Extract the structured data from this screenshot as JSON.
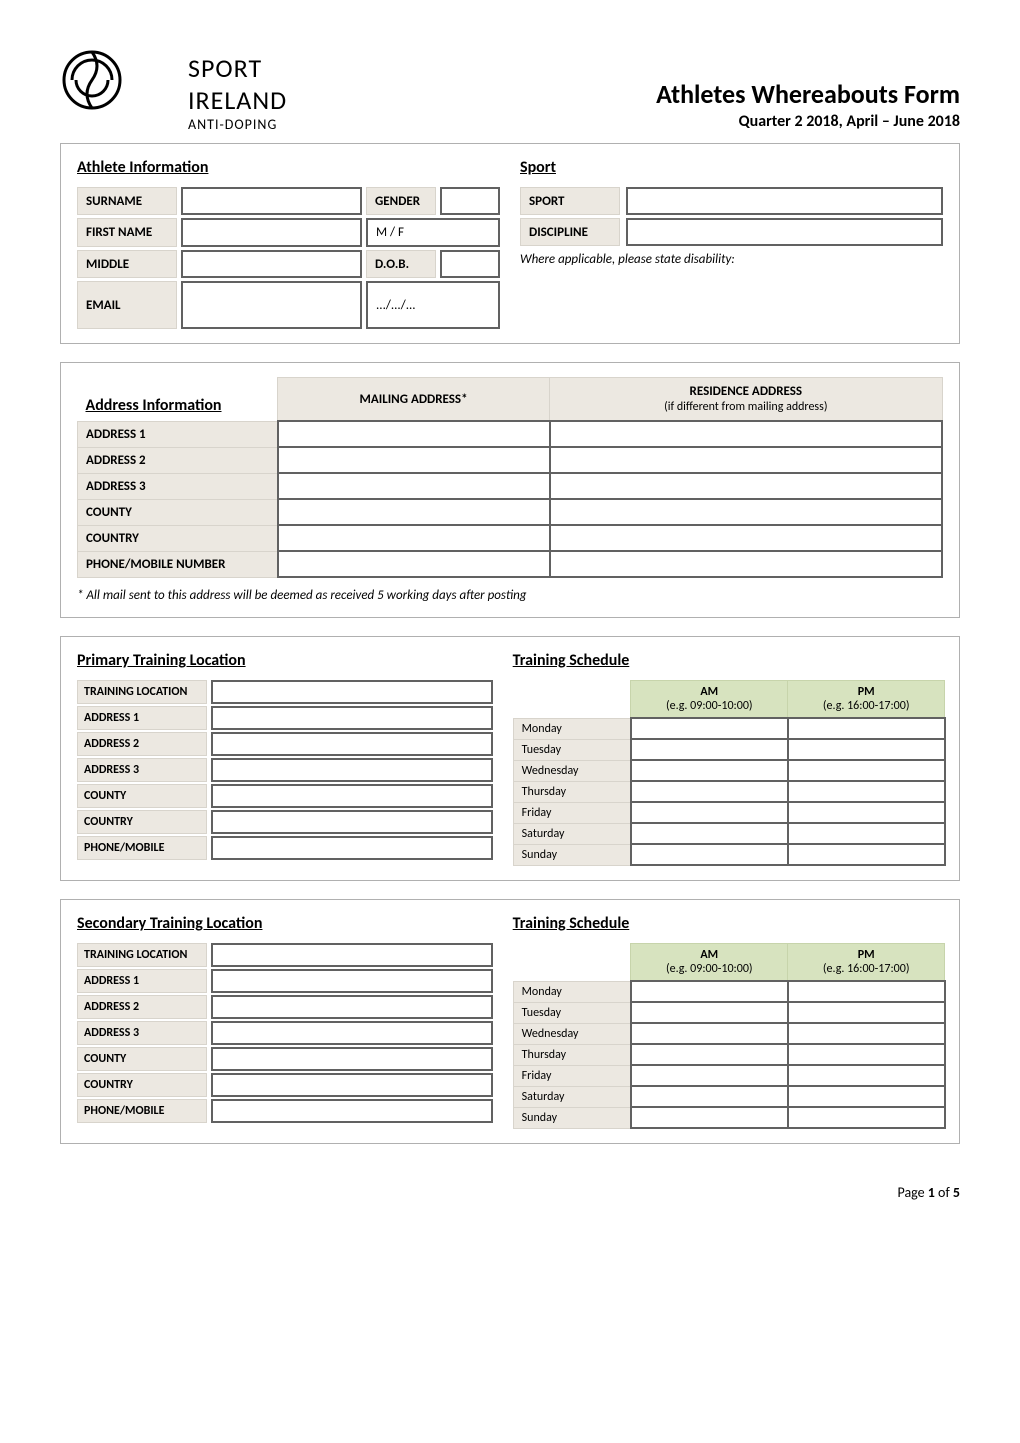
{
  "logo": {
    "line1": "SPORT",
    "line2": "IRELAND",
    "line3": "ANTI-DOPING"
  },
  "title": "Athletes Whereabouts Form",
  "subtitle": "Quarter 2 2018, April – June 2018",
  "athlete_section": {
    "heading": "Athlete Information",
    "rows": [
      {
        "label": "SURNAME",
        "value": "",
        "label2": "GENDER",
        "value2": ""
      },
      {
        "label": "FIRST NAME",
        "value": "",
        "label2": "",
        "value2": "M / F"
      },
      {
        "label": "MIDDLE",
        "value": "",
        "label2": "D.O.B.",
        "value2": ""
      },
      {
        "label": "EMAIL",
        "value": "",
        "label2": "",
        "value2": ".../.../..."
      }
    ]
  },
  "sport_section": {
    "heading": "Sport",
    "rows": [
      {
        "label": "SPORT",
        "value": ""
      },
      {
        "label": "DISCIPLINE",
        "value": ""
      }
    ],
    "note": "Where applicable, please state disability:"
  },
  "address_section": {
    "heading": "Address Information",
    "columns": [
      {
        "label": "MAILING ADDRESS",
        "suffix": "*"
      },
      {
        "label": "RESIDENCE ADDRESS",
        "sub": "(if different from mailing address)"
      }
    ],
    "rows": [
      "ADDRESS 1",
      "ADDRESS 2",
      "ADDRESS 3",
      "COUNTY",
      "COUNTRY",
      "PHONE/MOBILE NUMBER"
    ],
    "footnote": "* All mail sent to this address will be deemed as received 5 working days after posting"
  },
  "training_loc_fields": [
    "TRAINING LOCATION",
    "ADDRESS 1",
    "ADDRESS 2",
    "ADDRESS 3",
    "COUNTY",
    "COUNTRY",
    "PHONE/MOBILE"
  ],
  "schedule": {
    "heading": "Training Schedule",
    "header_cols": [
      {
        "label": "AM",
        "example": "(e.g. 09:00-10:00)",
        "bg": "#d7e3bf"
      },
      {
        "label": "PM",
        "example": "(e.g. 16:00-17:00)",
        "bg": "#d7e3bf"
      }
    ],
    "days": [
      "Monday",
      "Tuesday",
      "Wednesday",
      "Thursday",
      "Friday",
      "Saturday",
      "Sunday"
    ]
  },
  "primary_heading": "Primary Training Location",
  "secondary_heading": "Secondary Training Location",
  "footer": {
    "page": "Page ",
    "num": "1",
    "of": " of ",
    "total": "5"
  }
}
